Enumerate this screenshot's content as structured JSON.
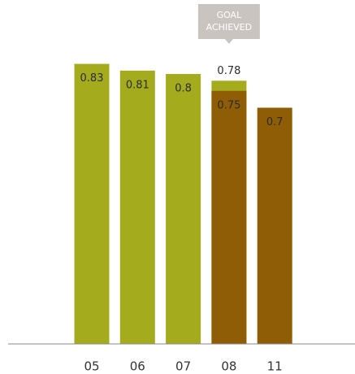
{
  "chart_data": {
    "type": "bar",
    "categories": [
      "05",
      "06",
      "07",
      "08",
      "11"
    ],
    "series": [
      {
        "color": "#a4ac1e",
        "values": [
          0.83,
          0.81,
          0.8,
          0.78,
          null
        ]
      },
      {
        "color": "#8e5d05",
        "values": [
          null,
          null,
          null,
          0.75,
          0.7
        ]
      }
    ],
    "ylim": [
      0,
      1
    ],
    "annotation": {
      "lines": [
        "GOAL",
        "ACHIEVED"
      ],
      "category": 3
    }
  }
}
